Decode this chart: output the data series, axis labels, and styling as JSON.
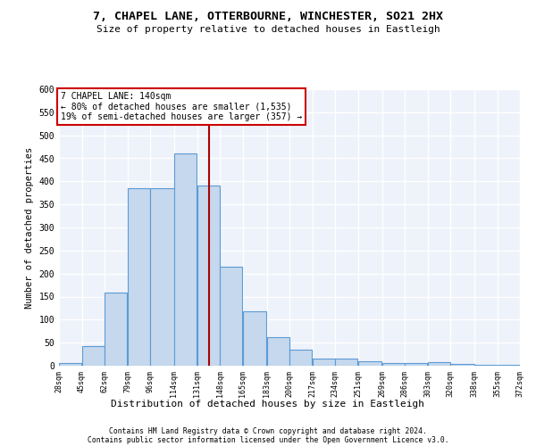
{
  "title": "7, CHAPEL LANE, OTTERBOURNE, WINCHESTER, SO21 2HX",
  "subtitle": "Size of property relative to detached houses in Eastleigh",
  "xlabel": "Distribution of detached houses by size in Eastleigh",
  "ylabel": "Number of detached properties",
  "bar_color": "#c5d8ed",
  "bar_edge_color": "#5b9bd5",
  "bar_heights": [
    5,
    42,
    158,
    385,
    385,
    460,
    390,
    215,
    118,
    62,
    35,
    15,
    15,
    10,
    5,
    5,
    8,
    3,
    2,
    1
  ],
  "bin_edges": [
    28,
    45,
    62,
    79,
    96,
    114,
    131,
    148,
    165,
    183,
    200,
    217,
    234,
    251,
    269,
    286,
    303,
    320,
    338,
    355,
    372
  ],
  "tick_labels": [
    "28sqm",
    "45sqm",
    "62sqm",
    "79sqm",
    "96sqm",
    "114sqm",
    "131sqm",
    "148sqm",
    "165sqm",
    "183sqm",
    "200sqm",
    "217sqm",
    "234sqm",
    "251sqm",
    "269sqm",
    "286sqm",
    "303sqm",
    "320sqm",
    "338sqm",
    "355sqm",
    "372sqm"
  ],
  "property_size": 140,
  "property_line_x": 140,
  "property_line_color": "#aa0000",
  "annotation_box_text": "7 CHAPEL LANE: 140sqm\n← 80% of detached houses are smaller (1,535)\n19% of semi-detached houses are larger (357) →",
  "annotation_box_color": "#ffffff",
  "annotation_box_edge_color": "#cc0000",
  "ylim": [
    0,
    600
  ],
  "yticks": [
    0,
    50,
    100,
    150,
    200,
    250,
    300,
    350,
    400,
    450,
    500,
    550,
    600
  ],
  "background_color": "#eef2fa",
  "grid_color": "#ffffff",
  "footer_line1": "Contains HM Land Registry data © Crown copyright and database right 2024.",
  "footer_line2": "Contains public sector information licensed under the Open Government Licence v3.0."
}
